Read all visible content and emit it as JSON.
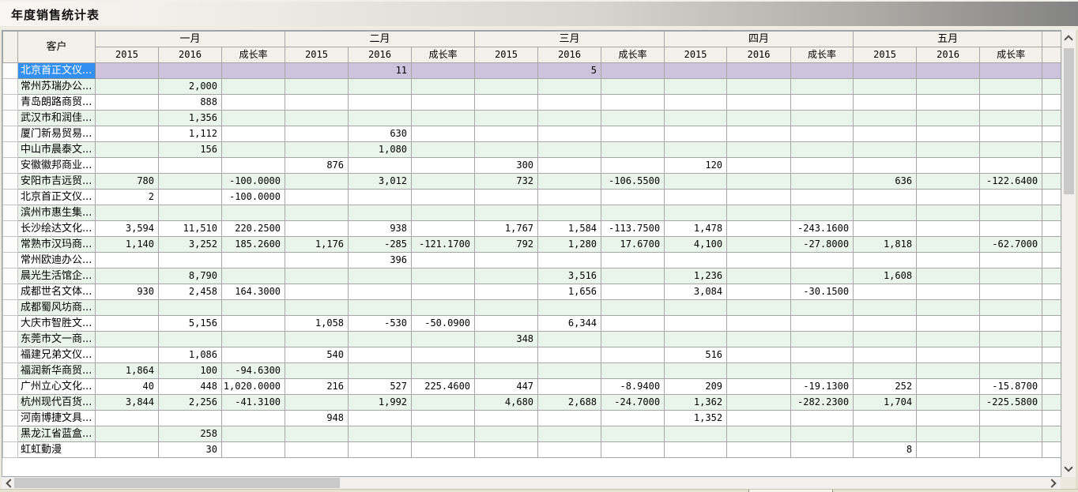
{
  "title": "年度销售统计表",
  "colors": {
    "selection_blue": "#3390F2",
    "selected_row_bg": "#CDC3DD",
    "stripe_green": "#E9F5EA",
    "header_bg": "#F4F1EA",
    "grid_border": "#A6A6A6"
  },
  "table": {
    "customer_header": "客户",
    "months": [
      "一月",
      "二月",
      "三月",
      "四月",
      "五月"
    ],
    "sub_headers": [
      "2015",
      "2016",
      "成长率"
    ],
    "rows": [
      {
        "name": "北京首正文仪...",
        "selected": true,
        "cells": [
          "",
          "",
          "",
          "",
          "11",
          "",
          "",
          "5",
          "",
          "",
          "",
          "",
          "",
          "",
          ""
        ]
      },
      {
        "name": "常州苏瑞办公...",
        "selected": false,
        "cells": [
          "",
          "2,000",
          "",
          "",
          "",
          "",
          "",
          "",
          "",
          "",
          "",
          "",
          "",
          "",
          ""
        ]
      },
      {
        "name": "青岛朗路商贸...",
        "selected": false,
        "cells": [
          "",
          "888",
          "",
          "",
          "",
          "",
          "",
          "",
          "",
          "",
          "",
          "",
          "",
          "",
          ""
        ]
      },
      {
        "name": "武汉市和润佳...",
        "selected": false,
        "cells": [
          "",
          "1,356",
          "",
          "",
          "",
          "",
          "",
          "",
          "",
          "",
          "",
          "",
          "",
          "",
          ""
        ]
      },
      {
        "name": "厦门新易贸易...",
        "selected": false,
        "cells": [
          "",
          "1,112",
          "",
          "",
          "630",
          "",
          "",
          "",
          "",
          "",
          "",
          "",
          "",
          "",
          ""
        ]
      },
      {
        "name": "中山市晨泰文...",
        "selected": false,
        "cells": [
          "",
          "156",
          "",
          "",
          "1,080",
          "",
          "",
          "",
          "",
          "",
          "",
          "",
          "",
          "",
          ""
        ]
      },
      {
        "name": "安徽徽邦商业...",
        "selected": false,
        "cells": [
          "",
          "",
          "",
          "876",
          "",
          "",
          "300",
          "",
          "",
          "120",
          "",
          "",
          "",
          "",
          ""
        ]
      },
      {
        "name": "安阳市吉远贸...",
        "selected": false,
        "cells": [
          "780",
          "",
          "-100.0000",
          "",
          "3,012",
          "",
          "732",
          "",
          "-106.5500",
          "",
          "",
          "",
          "636",
          "",
          "-122.6400"
        ]
      },
      {
        "name": "北京首正文仪...",
        "selected": false,
        "cells": [
          "2",
          "",
          "-100.0000",
          "",
          "",
          "",
          "",
          "",
          "",
          "",
          "",
          "",
          "",
          "",
          ""
        ]
      },
      {
        "name": "滨州市惠生集...",
        "selected": false,
        "cells": [
          "",
          "",
          "",
          "",
          "",
          "",
          "",
          "",
          "",
          "",
          "",
          "",
          "",
          "",
          ""
        ]
      },
      {
        "name": "长沙绘达文化...",
        "selected": false,
        "cells": [
          "3,594",
          "11,510",
          "220.2500",
          "",
          "938",
          "",
          "1,767",
          "1,584",
          "-113.7500",
          "1,478",
          "",
          "-243.1600",
          "",
          "",
          ""
        ]
      },
      {
        "name": "常熟市汉玛商...",
        "selected": false,
        "cells": [
          "1,140",
          "3,252",
          "185.2600",
          "1,176",
          "-285",
          "-121.1700",
          "792",
          "1,280",
          "17.6700",
          "4,100",
          "",
          "-27.8000",
          "1,818",
          "",
          "-62.7000"
        ]
      },
      {
        "name": "常州欧迪办公...",
        "selected": false,
        "cells": [
          "",
          "",
          "",
          "",
          "396",
          "",
          "",
          "",
          "",
          "",
          "",
          "",
          "",
          "",
          ""
        ]
      },
      {
        "name": "晨光生活馆企...",
        "selected": false,
        "cells": [
          "",
          "8,790",
          "",
          "",
          "",
          "",
          "",
          "3,516",
          "",
          "1,236",
          "",
          "",
          "1,608",
          "",
          ""
        ]
      },
      {
        "name": "成都世名文体...",
        "selected": false,
        "cells": [
          "930",
          "2,458",
          "164.3000",
          "",
          "",
          "",
          "",
          "1,656",
          "",
          "3,084",
          "",
          "-30.1500",
          "",
          "",
          ""
        ]
      },
      {
        "name": "成都蜀风坊商...",
        "selected": false,
        "cells": [
          "",
          "",
          "",
          "",
          "",
          "",
          "",
          "",
          "",
          "",
          "",
          "",
          "",
          "",
          ""
        ]
      },
      {
        "name": "大庆市智胜文...",
        "selected": false,
        "cells": [
          "",
          "5,156",
          "",
          "1,058",
          "-530",
          "-50.0900",
          "",
          "6,344",
          "",
          "",
          "",
          "",
          "",
          "",
          ""
        ]
      },
      {
        "name": "东莞市文一商...",
        "selected": false,
        "cells": [
          "",
          "",
          "",
          "",
          "",
          "",
          "348",
          "",
          "",
          "",
          "",
          "",
          "",
          "",
          ""
        ]
      },
      {
        "name": "福建兄弟文仪...",
        "selected": false,
        "cells": [
          "",
          "1,086",
          "",
          "540",
          "",
          "",
          "",
          "",
          "",
          "516",
          "",
          "",
          "",
          "",
          ""
        ]
      },
      {
        "name": "福润新华商贸...",
        "selected": false,
        "cells": [
          "1,864",
          "100",
          "-94.6300",
          "",
          "",
          "",
          "",
          "",
          "",
          "",
          "",
          "",
          "",
          "",
          ""
        ]
      },
      {
        "name": "广州立心文化...",
        "selected": false,
        "cells": [
          "40",
          "448",
          "1,020.0000",
          "216",
          "527",
          "225.4600",
          "447",
          "",
          "-8.9400",
          "209",
          "",
          "-19.1300",
          "252",
          "",
          "-15.8700"
        ]
      },
      {
        "name": "杭州现代百货...",
        "selected": false,
        "cells": [
          "3,844",
          "2,256",
          "-41.3100",
          "",
          "1,992",
          "",
          "4,680",
          "2,688",
          "-24.7000",
          "1,362",
          "",
          "-282.2300",
          "1,704",
          "",
          "-225.5800"
        ]
      },
      {
        "name": "河南博捷文具...",
        "selected": false,
        "cells": [
          "",
          "",
          "",
          "948",
          "",
          "",
          "",
          "",
          "",
          "1,352",
          "",
          "",
          "",
          "",
          ""
        ]
      },
      {
        "name": "黑龙江省蓝盒...",
        "selected": false,
        "cells": [
          "",
          "258",
          "",
          "",
          "",
          "",
          "",
          "",
          "",
          "",
          "",
          "",
          "",
          "",
          ""
        ]
      },
      {
        "name": "虹虹動漫",
        "selected": false,
        "cells": [
          "",
          "30",
          "",
          "",
          "",
          "",
          "",
          "",
          "",
          "",
          "",
          "",
          "8",
          "",
          ""
        ]
      }
    ]
  }
}
